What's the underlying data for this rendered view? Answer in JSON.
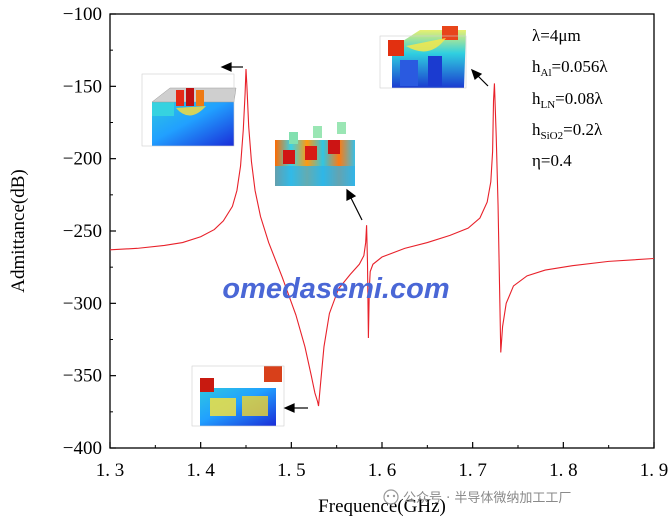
{
  "chart_data": {
    "type": "line",
    "xlabel": "Frequence(GHz)",
    "ylabel": "Admittance(dB)",
    "xlim": [
      1.3,
      1.9
    ],
    "ylim": [
      -400,
      -100
    ],
    "x_ticks": [
      "1. 3",
      "1. 4",
      "1. 5",
      "1. 6",
      "1. 7",
      "1. 8",
      "1. 9"
    ],
    "y_ticks": [
      "−100",
      "−150",
      "−200",
      "−250",
      "−300",
      "−350",
      "−400"
    ],
    "grid": false,
    "line_color": "#e8212a",
    "series": [
      {
        "x": [
          1.3,
          1.33,
          1.36,
          1.38,
          1.4,
          1.415,
          1.425,
          1.435,
          1.44,
          1.444,
          1.447,
          1.449,
          1.45,
          1.451,
          1.453,
          1.456,
          1.46,
          1.466,
          1.475,
          1.49,
          1.505,
          1.515,
          1.522,
          1.526,
          1.529,
          1.53,
          1.532,
          1.536,
          1.542,
          1.552,
          1.565,
          1.575,
          1.58,
          1.582,
          1.583,
          1.584,
          1.585,
          1.586,
          1.587,
          1.59,
          1.6,
          1.625,
          1.65,
          1.675,
          1.695,
          1.708,
          1.716,
          1.72,
          1.722,
          1.723,
          1.724,
          1.726,
          1.728,
          1.73,
          1.731,
          1.733,
          1.737,
          1.745,
          1.76,
          1.78,
          1.81,
          1.85,
          1.9
        ],
        "y": [
          -263,
          -262,
          -260,
          -258,
          -254,
          -249,
          -243,
          -233,
          -222,
          -205,
          -180,
          -155,
          -138,
          -150,
          -178,
          -202,
          -222,
          -240,
          -258,
          -282,
          -308,
          -330,
          -350,
          -362,
          -368,
          -371,
          -357,
          -330,
          -307,
          -290,
          -280,
          -273,
          -267,
          -258,
          -246,
          -272,
          -324,
          -290,
          -278,
          -273,
          -268,
          -262,
          -258,
          -253,
          -248,
          -241,
          -230,
          -216,
          -195,
          -160,
          -148,
          -185,
          -232,
          -300,
          -334,
          -316,
          -300,
          -288,
          -281,
          -277,
          -274,
          -271,
          -269
        ]
      }
    ],
    "annotations": [
      "λ=4μm",
      "h_Al=0.056λ",
      "h_LN=0.08λ",
      "h_SiO2=0.2λ",
      "η=0.4"
    ]
  },
  "params": {
    "lambda": "λ=4μm",
    "h_al_main": "h",
    "h_al_sub": "Al",
    "h_al_val": "=0.056λ",
    "h_ln_main": "h",
    "h_ln_sub": "LN",
    "h_ln_val": "=0.08λ",
    "h_sio2_main": "h",
    "h_sio2_sub": "SiO2",
    "h_sio2_val": "=0.2λ",
    "eta": "η=0.4"
  },
  "watermark": "omedasemi.com",
  "source_caption": "公众号 · 半导体微纳加工工厂"
}
